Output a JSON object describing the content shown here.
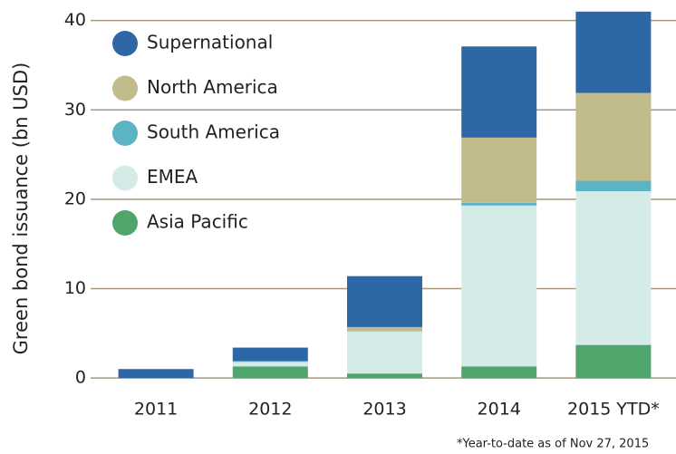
{
  "chart_data": {
    "type": "stacked_bar",
    "y_label": "Green bond issuance (bn USD)",
    "footnote": "*Year-to-date as of Nov 27, 2015",
    "categories": [
      "2011",
      "2012",
      "2013",
      "2014",
      "2015 YTD*"
    ],
    "series": [
      {
        "name": "Asia Pacific",
        "color": "#4fa56c",
        "values": [
          0,
          1.3,
          0.5,
          1.3,
          3.7
        ]
      },
      {
        "name": "EMEA",
        "color": "#d5ebe8",
        "values": [
          0,
          0.5,
          4.7,
          18.0,
          17.2
        ]
      },
      {
        "name": "South America",
        "color": "#5bb3c4",
        "values": [
          0,
          0.1,
          0,
          0.3,
          1.2
        ]
      },
      {
        "name": "North America",
        "color": "#c2bb8a",
        "values": [
          0,
          0,
          0.5,
          7.3,
          9.8
        ]
      },
      {
        "name": "Supernational",
        "color": "#2e67a5",
        "values": [
          1.0,
          1.5,
          5.7,
          10.2,
          9.1
        ]
      }
    ],
    "ylim": [
      -0.8,
      42.3
    ],
    "yticks": [
      0,
      10,
      20,
      30,
      40
    ],
    "grid": true,
    "legend": "upper left"
  }
}
